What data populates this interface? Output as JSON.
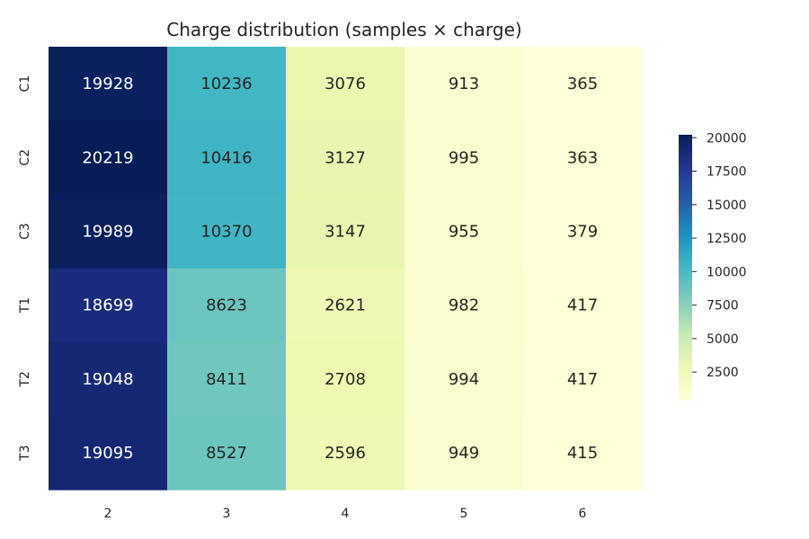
{
  "chart_data": {
    "type": "heatmap",
    "title": "Charge distribution (samples × charge)",
    "xlabel": "",
    "ylabel": "",
    "x_categories": [
      "2",
      "3",
      "4",
      "5",
      "6"
    ],
    "y_categories": [
      "C1",
      "C2",
      "C3",
      "T1",
      "T2",
      "T3"
    ],
    "values": [
      [
        19928,
        10236,
        3076,
        913,
        365
      ],
      [
        20219,
        10416,
        3127,
        995,
        363
      ],
      [
        19989,
        10370,
        3147,
        955,
        379
      ],
      [
        18699,
        8623,
        2621,
        982,
        417
      ],
      [
        19048,
        8411,
        2708,
        994,
        417
      ],
      [
        19095,
        8527,
        2596,
        949,
        415
      ]
    ],
    "colormap": "YlGnBu",
    "color_range": [
      363,
      20219
    ],
    "colorbar": {
      "ticks": [
        2500,
        5000,
        7500,
        10000,
        12500,
        15000,
        17500,
        20000
      ],
      "tick_labels": [
        "2500",
        "5000",
        "7500",
        "10000",
        "12500",
        "15000",
        "17500",
        "20000"
      ]
    },
    "annotations": true,
    "grid": false
  }
}
